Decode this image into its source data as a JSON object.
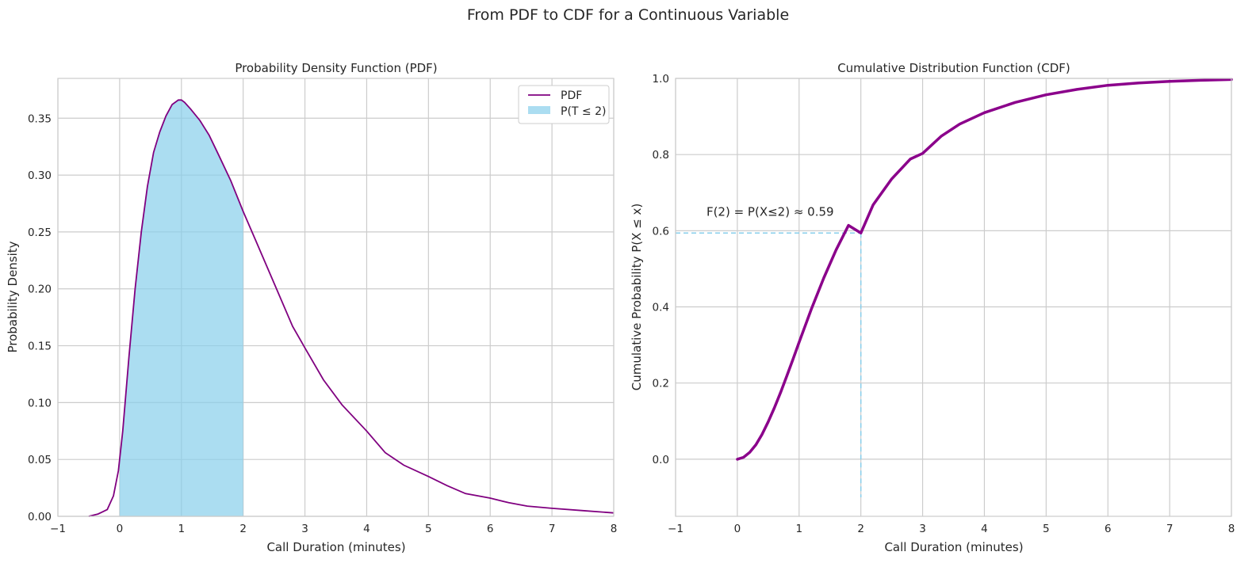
{
  "figure": {
    "title": "From PDF to CDF for a Continuous Variable"
  },
  "colors": {
    "pdf_line": "#800080",
    "cdf_line": "#8B008B",
    "fill": "#87CEEB",
    "grid": "#cccccc"
  },
  "chart_data": [
    {
      "type": "area",
      "title": "Probability Density Function (PDF)",
      "xlabel": "Call Duration (minutes)",
      "ylabel": "Probability Density",
      "xlim": [
        -1,
        8
      ],
      "ylim": [
        0,
        0.385
      ],
      "xticks": [
        -1,
        0,
        1,
        2,
        3,
        4,
        5,
        6,
        7,
        8
      ],
      "xtick_labels": [
        "−1",
        "0",
        "1",
        "2",
        "3",
        "4",
        "5",
        "6",
        "7",
        "8"
      ],
      "yticks": [
        0,
        0.05,
        0.1,
        0.15,
        0.2,
        0.25,
        0.3,
        0.35
      ],
      "ytick_labels": [
        "0.00",
        "0.05",
        "0.10",
        "0.15",
        "0.20",
        "0.25",
        "0.30",
        "0.35"
      ],
      "grid": true,
      "legend_position": "top-right",
      "series": [
        {
          "name": "PDF",
          "x": [
            -0.5,
            -0.35,
            -0.2,
            -0.1,
            -0.02,
            0.05,
            0.15,
            0.25,
            0.35,
            0.45,
            0.55,
            0.65,
            0.75,
            0.85,
            0.95,
            1.0,
            1.05,
            1.15,
            1.3,
            1.45,
            1.6,
            1.8,
            2.0,
            2.2,
            2.5,
            2.8,
            3.0,
            3.3,
            3.6,
            4.0,
            4.3,
            4.6,
            5.0,
            5.3,
            5.6,
            6.0,
            6.3,
            6.6,
            7.0,
            7.5,
            8.0
          ],
          "y": [
            0.0,
            0.002,
            0.006,
            0.018,
            0.04,
            0.075,
            0.14,
            0.2,
            0.25,
            0.29,
            0.32,
            0.338,
            0.352,
            0.362,
            0.366,
            0.366,
            0.364,
            0.358,
            0.348,
            0.335,
            0.318,
            0.295,
            0.268,
            0.243,
            0.205,
            0.167,
            0.148,
            0.12,
            0.098,
            0.075,
            0.056,
            0.045,
            0.035,
            0.027,
            0.02,
            0.016,
            0.012,
            0.009,
            0.007,
            0.005,
            0.003
          ]
        },
        {
          "name": "P(T ≤ 2)",
          "fill_to": 2
        }
      ]
    },
    {
      "type": "line",
      "title": "Cumulative Distribution Function (CDF)",
      "xlabel": "Call Duration (minutes)",
      "ylabel": "Cumulative Probability P(X ≤ x)",
      "xlim": [
        -1,
        8
      ],
      "ylim": [
        -0.15,
        1.0
      ],
      "xticks": [
        -1,
        0,
        1,
        2,
        3,
        4,
        5,
        6,
        7,
        8
      ],
      "xtick_labels": [
        "−1",
        "0",
        "1",
        "2",
        "3",
        "4",
        "5",
        "6",
        "7",
        "8"
      ],
      "yticks": [
        0.0,
        0.2,
        0.4,
        0.6,
        0.8,
        1.0
      ],
      "ytick_labels": [
        "0.0",
        "0.2",
        "0.4",
        "0.6",
        "0.8",
        "1.0"
      ],
      "grid": true,
      "series": [
        {
          "x": [
            0,
            0.1,
            0.2,
            0.3,
            0.4,
            0.5,
            0.6,
            0.7,
            0.8,
            0.9,
            1.0,
            1.2,
            1.4,
            1.6,
            1.8,
            2.0,
            2.2,
            2.5,
            2.8,
            3.0,
            3.3,
            3.6,
            4.0,
            4.5,
            5.0,
            5.5,
            6.0,
            6.5,
            7.0,
            7.5,
            8.0
          ],
          "y": [
            0.0,
            0.005,
            0.018,
            0.038,
            0.065,
            0.098,
            0.135,
            0.175,
            0.218,
            0.262,
            0.307,
            0.395,
            0.476,
            0.55,
            0.614,
            0.594,
            0.668,
            0.736,
            0.788,
            0.803,
            0.848,
            0.88,
            0.91,
            0.937,
            0.957,
            0.971,
            0.982,
            0.988,
            0.992,
            0.995,
            0.997
          ]
        }
      ],
      "reference": {
        "x": 2,
        "y": 0.594
      },
      "annotation": {
        "text": "F(2) = P(X≤2) ≈ 0.59",
        "x": -0.5,
        "y": 0.65
      }
    }
  ]
}
